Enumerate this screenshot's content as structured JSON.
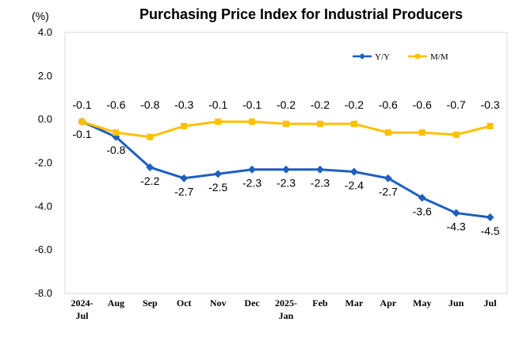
{
  "chart_data": {
    "type": "line",
    "title": "Purchasing Price Index for Industrial Producers",
    "unit_label": "(%)",
    "categories": [
      "2024-Jul",
      "Aug",
      "Sep",
      "Oct",
      "Nov",
      "Dec",
      "2025-Jan",
      "Feb",
      "Mar",
      "Apr",
      "May",
      "Jun",
      "Jul"
    ],
    "category_lines": [
      [
        "2024-",
        "Jul"
      ],
      [
        "Aug"
      ],
      [
        "Sep"
      ],
      [
        "Oct"
      ],
      [
        "Nov"
      ],
      [
        "Dec"
      ],
      [
        "2025-",
        "Jan"
      ],
      [
        "Feb"
      ],
      [
        "Mar"
      ],
      [
        "Apr"
      ],
      [
        "May"
      ],
      [
        "Jun"
      ],
      [
        "Jul"
      ]
    ],
    "series": [
      {
        "name": "Y/Y",
        "color": "#1f5fbf",
        "marker": "diamond",
        "values": [
          -0.1,
          -0.8,
          -2.2,
          -2.7,
          -2.5,
          -2.3,
          -2.3,
          -2.3,
          -2.4,
          -2.7,
          -3.6,
          -4.3,
          -4.5
        ]
      },
      {
        "name": "M/M",
        "color": "#ffc000",
        "marker": "square",
        "values": [
          -0.1,
          -0.6,
          -0.8,
          -0.3,
          -0.1,
          -0.1,
          -0.2,
          -0.2,
          -0.2,
          -0.6,
          -0.6,
          -0.7,
          -0.3
        ]
      }
    ],
    "ylim": [
      -8.0,
      4.0
    ],
    "yticks": [
      4.0,
      2.0,
      0.0,
      -2.0,
      -4.0,
      -6.0,
      -8.0
    ],
    "ytick_labels": [
      "4.0",
      "2.0",
      "0.0",
      "-2.0",
      "-4.0",
      "-6.0",
      "-8.0"
    ],
    "grid": false,
    "legend_position": "top-right"
  }
}
